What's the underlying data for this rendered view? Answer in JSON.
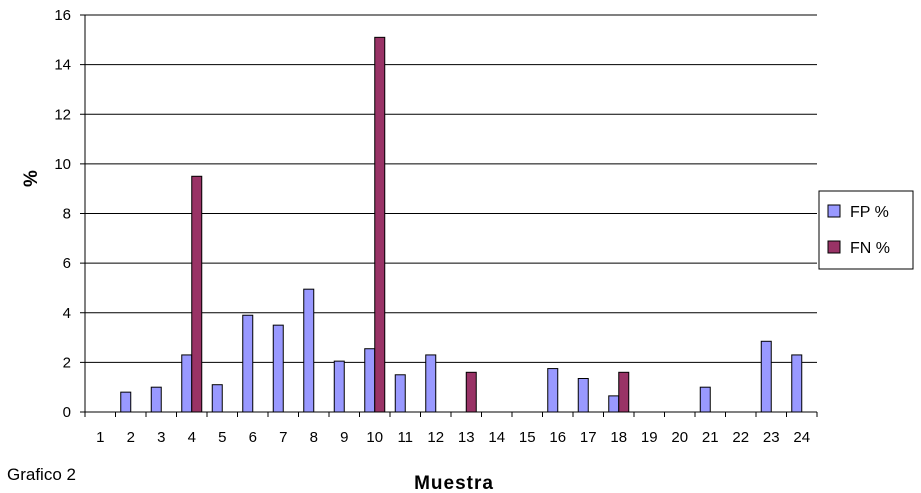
{
  "chart_data": {
    "type": "bar",
    "title": "",
    "xlabel": "Muestra",
    "ylabel": "%",
    "ylim": [
      0,
      16
    ],
    "yticks": [
      "0",
      "2",
      "4",
      "6",
      "8",
      "10",
      "12",
      "14",
      "16"
    ],
    "categories": [
      "1",
      "2",
      "3",
      "4",
      "5",
      "6",
      "7",
      "8",
      "9",
      "10",
      "11",
      "12",
      "13",
      "14",
      "15",
      "16",
      "17",
      "18",
      "19",
      "20",
      "21",
      "22",
      "23",
      "24"
    ],
    "series": [
      {
        "name": "FP %",
        "color": "#9999ff",
        "values": [
          0,
          0.8,
          1.0,
          2.3,
          1.1,
          3.9,
          3.5,
          4.95,
          2.05,
          2.55,
          1.5,
          2.3,
          0,
          0,
          0,
          1.75,
          1.35,
          0.65,
          0,
          0,
          1.0,
          0,
          2.85,
          2.3
        ]
      },
      {
        "name": "FN %",
        "color": "#993366",
        "values": [
          0,
          0,
          0,
          9.5,
          0,
          0,
          0,
          0,
          0,
          15.1,
          0,
          0,
          1.6,
          0,
          0,
          0,
          0,
          1.6,
          0,
          0,
          0,
          0,
          0,
          0
        ]
      }
    ],
    "grid": true,
    "legend_position": "right",
    "caption": "Grafico 2"
  }
}
